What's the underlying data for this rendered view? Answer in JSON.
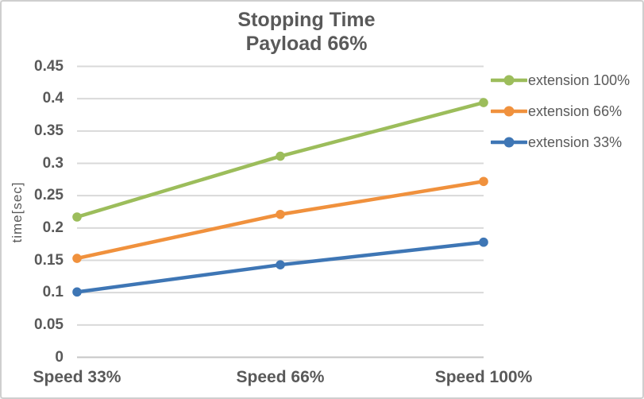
{
  "chart_data": {
    "type": "line",
    "title": "Stopping Time",
    "subtitle": "Payload 66%",
    "ylabel": "time[sec]",
    "xlabel": "",
    "categories": [
      "Speed 33%",
      "Speed 66%",
      "Speed 100%"
    ],
    "series": [
      {
        "name": "extension 100%",
        "color": "#9cbd5b",
        "values": [
          0.217,
          0.311,
          0.394
        ]
      },
      {
        "name": "extension 66%",
        "color": "#f0913d",
        "values": [
          0.153,
          0.221,
          0.272
        ]
      },
      {
        "name": "extension 33%",
        "color": "#3e76b5",
        "values": [
          0.101,
          0.143,
          0.178
        ]
      }
    ],
    "ylim": [
      0,
      0.45
    ],
    "ytick_step": 0.05,
    "ytick_labels": [
      "0",
      "0.05",
      "0.1",
      "0.15",
      "0.2",
      "0.25",
      "0.3",
      "0.35",
      "0.4",
      "0.45"
    ],
    "grid": true,
    "legend_position": "right",
    "marker": "circle"
  },
  "colors": {
    "text": "#595959",
    "gridline": "#d9d9d9",
    "axis_line": "#c6c6c6",
    "background": "#ffffff",
    "frame_border": "#cfcfcf"
  }
}
